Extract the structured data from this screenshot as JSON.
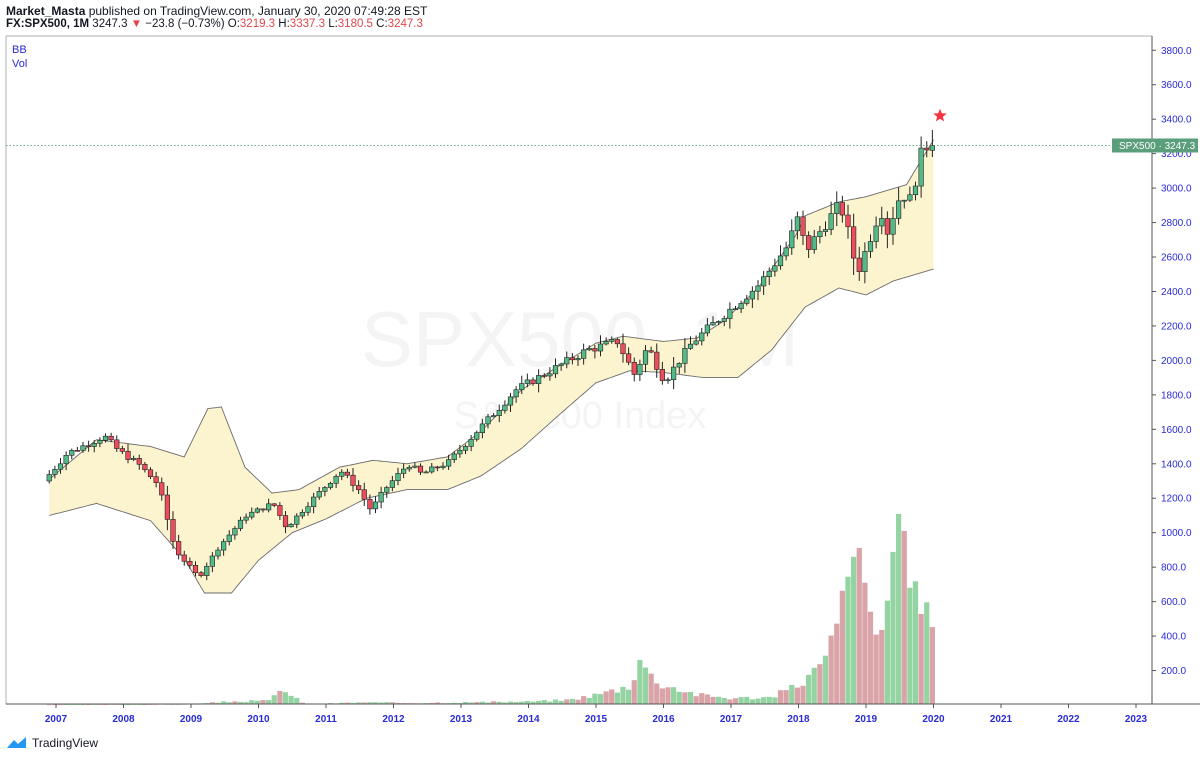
{
  "header": {
    "author": "Market_Masta",
    "published": " published on TradingView.com, January 30, 2020 07:49:28 EST",
    "symbol": "FX:SPX500, 1M",
    "last": "3247.3",
    "arrow": "▼",
    "change": "−23.8 (−0.73%)",
    "o_label": "O:",
    "o_val": "3219.3",
    "h_label": "H:",
    "h_val": "3337.3",
    "l_label": "L:",
    "l_val": "3180.5",
    "c_label": "C:",
    "c_val": "3247.3"
  },
  "indicators": [
    "BB",
    "Vol"
  ],
  "watermark": {
    "line1": "SPX500, 1M",
    "line2": "S&P 500 Index"
  },
  "price_label": {
    "symbol": "SPX500",
    "value": "3247.3"
  },
  "footer": {
    "brand": "TradingView"
  },
  "colors": {
    "up": "#53b987",
    "down": "#eb4d5c",
    "vol_up": "#94d3a2",
    "vol_down": "#d9a3a8",
    "band_fill": "#fcf3cf",
    "band_line": "#6b6b6b",
    "axis_text": "#2a2ad8",
    "star": "#f5333f"
  },
  "chart_data": {
    "type": "candlestick",
    "timeframe": "1M",
    "x_ticks": [
      "2007",
      "2008",
      "2009",
      "2010",
      "2011",
      "2012",
      "2013",
      "2014",
      "2015",
      "2016",
      "2017",
      "2018",
      "2019",
      "2020",
      "2021",
      "2022",
      "2023"
    ],
    "y_ticks": [
      "200.0",
      "400.0",
      "600.0",
      "800.0",
      "1000.0",
      "1200.0",
      "1400.0",
      "1600.0",
      "1800.0",
      "2000.0",
      "2200.0",
      "2400.0",
      "2600.0",
      "2800.0",
      "3000.0",
      "3200.0",
      "3400.0",
      "3600.0",
      "3800.0"
    ],
    "ylim": [
      0,
      3900
    ],
    "ohlc_year_close": {
      "2006": 1418,
      "2007": 1468,
      "2008": 903,
      "2009": 1115,
      "2010": 1258,
      "2011": 1258,
      "2012": 1426,
      "2013": 1848,
      "2014": 2059,
      "2015": 2044,
      "2016": 2239,
      "2017": 2674,
      "2018": 2507,
      "2019": 3231
    },
    "last_candle": {
      "open": 3219.3,
      "high": 3337.3,
      "low": 3180.5,
      "close": 3247.3
    },
    "bollinger_upper": [
      [
        2006.9,
        1300
      ],
      [
        2007.5,
        1500
      ],
      [
        2009.1,
        1450
      ],
      [
        2009.35,
        1750
      ],
      [
        2010,
        1200
      ],
      [
        2011,
        1300
      ],
      [
        2012,
        1380
      ],
      [
        2013,
        1500
      ],
      [
        2014,
        1900
      ],
      [
        2015,
        2100
      ],
      [
        2016,
        2150
      ],
      [
        2017,
        2300
      ],
      [
        2018,
        2780
      ],
      [
        2019,
        3000
      ],
      [
        2020,
        3280
      ]
    ],
    "bollinger_lower": [
      [
        2006.9,
        1100
      ],
      [
        2007.5,
        1150
      ],
      [
        2009.2,
        650
      ],
      [
        2010,
        850
      ],
      [
        2011,
        1100
      ],
      [
        2012,
        1250
      ],
      [
        2013,
        1450
      ],
      [
        2014,
        1650
      ],
      [
        2015,
        1850
      ],
      [
        2016,
        1900
      ],
      [
        2017,
        2050
      ],
      [
        2018,
        2350
      ],
      [
        2019,
        2400
      ],
      [
        2020,
        2530
      ]
    ],
    "volume": [
      [
        2009.1,
        10
      ],
      [
        2009.5,
        20
      ],
      [
        2010.25,
        110
      ],
      [
        2010.5,
        60
      ],
      [
        2012,
        30
      ],
      [
        2014,
        20
      ],
      [
        2015,
        40
      ],
      [
        2015.7,
        280
      ],
      [
        2016,
        120
      ],
      [
        2016.5,
        60
      ],
      [
        2017,
        40
      ],
      [
        2017.5,
        30
      ],
      [
        2018,
        120
      ],
      [
        2018.8,
        650
      ],
      [
        2018.9,
        860
      ],
      [
        2019,
        600
      ],
      [
        2019.3,
        820
      ],
      [
        2019.7,
        1010
      ],
      [
        2019.9,
        500
      ],
      [
        2020,
        610
      ]
    ]
  }
}
